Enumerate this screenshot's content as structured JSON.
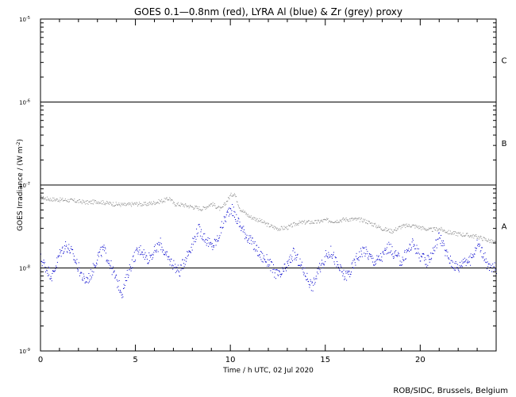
{
  "chart_data": {
    "type": "scatter",
    "title": "GOES 0.1—0.8nm (red), LYRA Al (blue) & Zr (grey) proxy",
    "xlabel": "Time / h UTC, 02 Jul 2020",
    "ylabel": "GOES Irradiance / (W m",
    "ylabel_exp": "-2",
    "ylabel_close": ")",
    "xlim": [
      0,
      24
    ],
    "ylim": [
      1e-09,
      1e-05
    ],
    "yscale": "log",
    "x_ticks": [
      0,
      5,
      10,
      15,
      20
    ],
    "x_tick_labels": [
      "0",
      "5",
      "10",
      "15",
      "20"
    ],
    "y_ticks": [
      1e-09,
      1e-08,
      1e-07,
      1e-06,
      1e-05
    ],
    "y_tick_labels": [
      {
        "base": "10",
        "exp": "-9"
      },
      {
        "base": "10",
        "exp": "-8"
      },
      {
        "base": "10",
        "exp": "-7"
      },
      {
        "base": "10",
        "exp": "-6"
      },
      {
        "base": "10",
        "exp": "-5"
      }
    ],
    "flare_class_lines": [
      1e-08,
      1e-07,
      1e-06
    ],
    "flare_class_labels": [
      {
        "label": "A",
        "y": 3.2e-08
      },
      {
        "label": "B",
        "y": 3.2e-07
      },
      {
        "label": "C",
        "y": 3.2e-06
      }
    ],
    "series": [
      {
        "name": "LYRA Zr (grey)",
        "color": "#909090",
        "x": [
          0.0,
          0.5,
          1.0,
          1.5,
          2.0,
          2.5,
          3.0,
          3.5,
          4.0,
          4.5,
          5.0,
          5.5,
          6.0,
          6.5,
          6.8,
          7.0,
          7.5,
          8.0,
          8.5,
          9.0,
          9.5,
          10.0,
          10.2,
          10.5,
          11.0,
          11.5,
          12.0,
          12.5,
          13.0,
          13.5,
          14.0,
          14.5,
          15.0,
          15.5,
          16.0,
          16.5,
          17.0,
          17.5,
          18.0,
          18.5,
          19.0,
          19.5,
          20.0,
          20.5,
          21.0,
          21.5,
          22.0,
          22.5,
          23.0,
          23.5,
          24.0
        ],
        "y": [
          7.1e-08,
          6.8e-08,
          6.7e-08,
          6.6e-08,
          6.4e-08,
          6.2e-08,
          6.4e-08,
          6.1e-08,
          5.9e-08,
          5.8e-08,
          6e-08,
          5.9e-08,
          6.2e-08,
          6.6e-08,
          7e-08,
          6e-08,
          5.8e-08,
          5.5e-08,
          5.2e-08,
          6e-08,
          5.1e-08,
          7.6e-08,
          8e-08,
          5.2e-08,
          4.2e-08,
          3.8e-08,
          3.3e-08,
          3e-08,
          3.1e-08,
          3.5e-08,
          3.6e-08,
          3.6e-08,
          3.8e-08,
          3.7e-08,
          3.9e-08,
          3.9e-08,
          3.8e-08,
          3.4e-08,
          3e-08,
          2.8e-08,
          3.2e-08,
          3.3e-08,
          3.1e-08,
          2.9e-08,
          3e-08,
          2.7e-08,
          2.6e-08,
          2.5e-08,
          2.4e-08,
          2.2e-08,
          2e-08
        ]
      },
      {
        "name": "LYRA Al (blue)",
        "color": "#0000cc",
        "x": [
          0.0,
          0.3,
          0.6,
          1.0,
          1.3,
          1.6,
          2.0,
          2.3,
          2.6,
          3.0,
          3.3,
          3.6,
          4.0,
          4.3,
          4.6,
          5.0,
          5.3,
          5.6,
          6.0,
          6.3,
          6.6,
          7.0,
          7.3,
          7.6,
          8.0,
          8.3,
          8.6,
          9.0,
          9.3,
          9.6,
          10.0,
          10.3,
          10.6,
          11.0,
          11.3,
          11.6,
          12.0,
          12.3,
          12.6,
          13.0,
          13.3,
          13.6,
          14.0,
          14.3,
          14.6,
          15.0,
          15.3,
          15.6,
          16.0,
          16.3,
          16.6,
          17.0,
          17.3,
          17.6,
          18.0,
          18.3,
          18.6,
          19.0,
          19.3,
          19.6,
          20.0,
          20.3,
          20.6,
          21.0,
          21.3,
          21.6,
          22.0,
          22.3,
          22.6,
          23.0,
          23.3,
          23.6,
          24.0
        ],
        "y": [
          1.3e-08,
          1e-08,
          8e-09,
          1.5e-08,
          1.9e-08,
          1.6e-08,
          1e-08,
          7e-09,
          8e-09,
          1.4e-08,
          1.7e-08,
          1.2e-08,
          7e-09,
          5e-09,
          9e-09,
          1.5e-08,
          1.7e-08,
          1.3e-08,
          1.6e-08,
          2e-08,
          1.4e-08,
          1.1e-08,
          9e-09,
          1.3e-08,
          2e-08,
          3e-08,
          2.4e-08,
          1.8e-08,
          2.2e-08,
          3.5e-08,
          5.5e-08,
          4e-08,
          3e-08,
          2.2e-08,
          1.8e-08,
          1.4e-08,
          1.2e-08,
          9e-09,
          8e-09,
          1.1e-08,
          1.5e-08,
          1.2e-08,
          8e-09,
          6e-09,
          9e-09,
          1.4e-08,
          1.6e-08,
          1.1e-08,
          8e-09,
          9e-09,
          1.3e-08,
          1.7e-08,
          1.4e-08,
          1.2e-08,
          1.4e-08,
          1.8e-08,
          1.5e-08,
          1.2e-08,
          1.6e-08,
          2e-08,
          1.4e-08,
          1.2e-08,
          1.5e-08,
          2.5e-08,
          1.6e-08,
          1.2e-08,
          1e-08,
          1.3e-08,
          1.2e-08,
          2e-08,
          1.5e-08,
          1e-08,
          1e-08
        ]
      }
    ]
  },
  "credit": "ROB/SIDC, Brussels, Belgium"
}
